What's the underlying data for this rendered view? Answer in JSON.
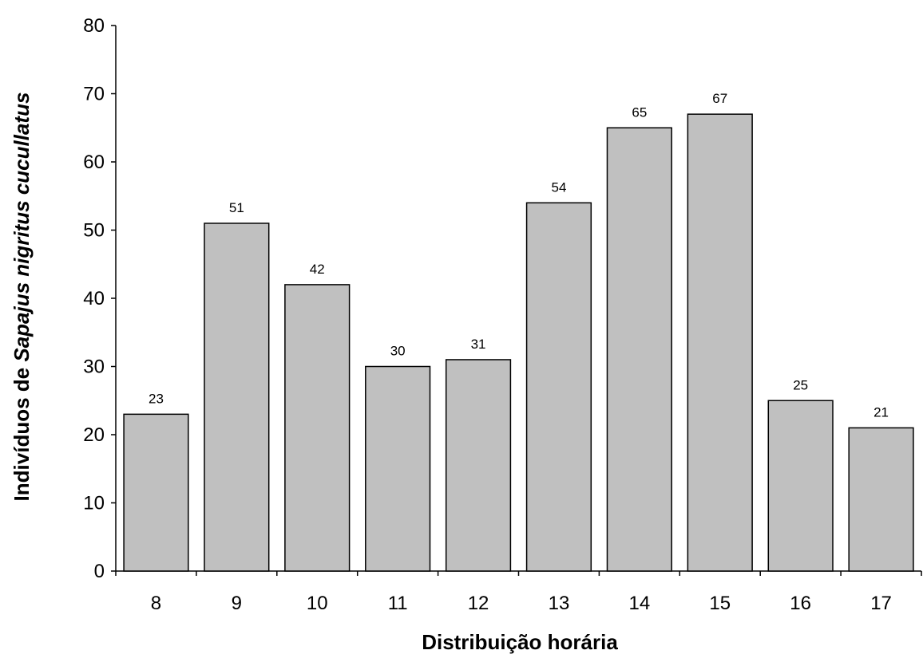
{
  "chart_data": {
    "type": "bar",
    "categories": [
      "8",
      "9",
      "10",
      "11",
      "12",
      "13",
      "14",
      "15",
      "16",
      "17"
    ],
    "values": [
      23,
      51,
      42,
      30,
      31,
      54,
      65,
      67,
      25,
      21
    ],
    "xlabel": "Distribuição horária",
    "ylabel": {
      "prefix": "Indivíduos de ",
      "species": "Sapajus nigritus cucullatus"
    },
    "ylim": [
      0,
      80
    ],
    "yticks": [
      0,
      10,
      20,
      30,
      40,
      50,
      60,
      70,
      80
    ],
    "bar_fill": "#c0c0c0",
    "bar_stroke": "#000000",
    "grid": false,
    "legend": "none"
  }
}
